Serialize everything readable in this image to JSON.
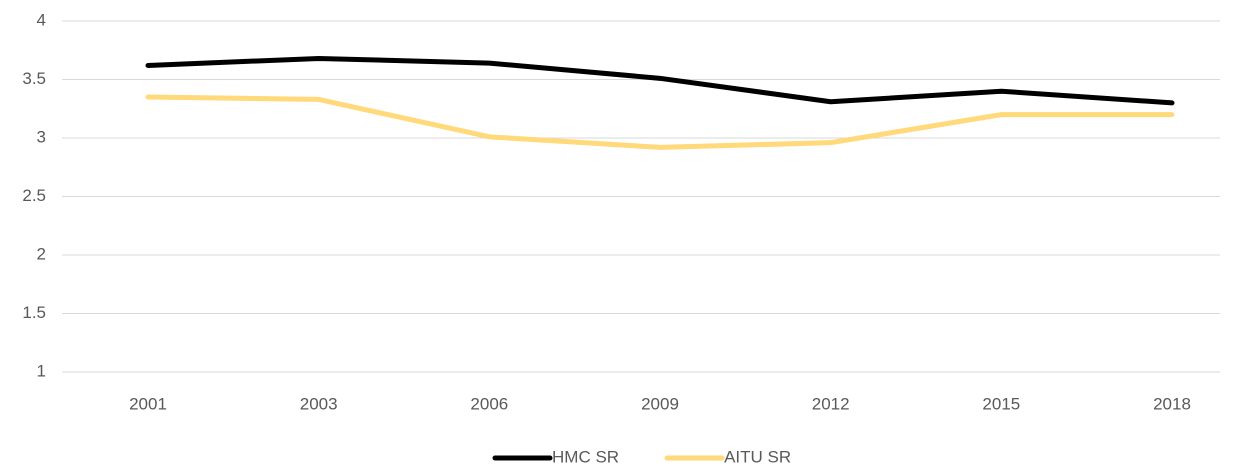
{
  "chart_data": {
    "type": "line",
    "categories": [
      "2001",
      "2003",
      "2006",
      "2009",
      "2012",
      "2015",
      "2018"
    ],
    "series": [
      {
        "name": "HMC SR",
        "color": "#000000",
        "values": [
          3.62,
          3.68,
          3.64,
          3.51,
          3.31,
          3.4,
          3.3
        ]
      },
      {
        "name": "AITU SR",
        "color": "#FFD97A",
        "values": [
          3.35,
          3.33,
          3.01,
          2.92,
          2.96,
          3.2,
          3.2
        ]
      }
    ],
    "ylim": [
      1,
      4
    ],
    "yticks": [
      1,
      1.5,
      2,
      2.5,
      3,
      3.5,
      4
    ],
    "grid": true,
    "legend": "bottom"
  }
}
